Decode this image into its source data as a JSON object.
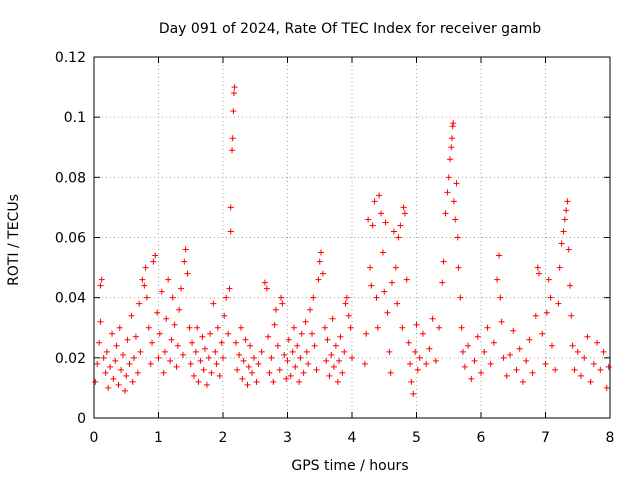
{
  "chart_data": {
    "type": "scatter",
    "title": "Day 091 of 2024, Rate Of TEC Index for receiver gamb",
    "xlabel": "GPS time / hours",
    "ylabel": "ROTI / TECUs",
    "xlim": [
      0,
      8
    ],
    "ylim": [
      0,
      0.12
    ],
    "xticks": [
      0,
      1,
      2,
      3,
      4,
      5,
      6,
      7,
      8
    ],
    "xtick_labels": [
      "0",
      "1",
      "2",
      "3",
      "4",
      "5",
      "6",
      "7",
      "8"
    ],
    "yticks": [
      0,
      0.02,
      0.04,
      0.06,
      0.08,
      0.1,
      0.12
    ],
    "ytick_labels": [
      "0",
      "0.02",
      "0.04",
      "0.06",
      "0.08",
      "0.1",
      "0.12"
    ],
    "grid": true,
    "marker": "plus",
    "color": "#ff0000",
    "series": [
      {
        "name": "ROTI",
        "points": [
          [
            0.02,
            0.012
          ],
          [
            0.05,
            0.018
          ],
          [
            0.08,
            0.025
          ],
          [
            0.1,
            0.032
          ],
          [
            0.1,
            0.044
          ],
          [
            0.12,
            0.046
          ],
          [
            0.15,
            0.02
          ],
          [
            0.18,
            0.015
          ],
          [
            0.2,
            0.022
          ],
          [
            0.22,
            0.01
          ],
          [
            0.25,
            0.017
          ],
          [
            0.28,
            0.028
          ],
          [
            0.3,
            0.013
          ],
          [
            0.33,
            0.019
          ],
          [
            0.35,
            0.024
          ],
          [
            0.38,
            0.011
          ],
          [
            0.4,
            0.03
          ],
          [
            0.42,
            0.016
          ],
          [
            0.45,
            0.021
          ],
          [
            0.48,
            0.009
          ],
          [
            0.5,
            0.014
          ],
          [
            0.52,
            0.026
          ],
          [
            0.55,
            0.018
          ],
          [
            0.58,
            0.034
          ],
          [
            0.6,
            0.012
          ],
          [
            0.62,
            0.02
          ],
          [
            0.65,
            0.027
          ],
          [
            0.68,
            0.015
          ],
          [
            0.7,
            0.038
          ],
          [
            0.72,
            0.022
          ],
          [
            0.75,
            0.046
          ],
          [
            0.78,
            0.044
          ],
          [
            0.8,
            0.05
          ],
          [
            0.82,
            0.04
          ],
          [
            0.85,
            0.03
          ],
          [
            0.88,
            0.018
          ],
          [
            0.9,
            0.025
          ],
          [
            0.92,
            0.052
          ],
          [
            0.95,
            0.054
          ],
          [
            0.98,
            0.035
          ],
          [
            1.0,
            0.02
          ],
          [
            1.02,
            0.028
          ],
          [
            1.05,
            0.042
          ],
          [
            1.08,
            0.015
          ],
          [
            1.1,
            0.022
          ],
          [
            1.12,
            0.033
          ],
          [
            1.15,
            0.046
          ],
          [
            1.18,
            0.019
          ],
          [
            1.2,
            0.026
          ],
          [
            1.22,
            0.04
          ],
          [
            1.25,
            0.031
          ],
          [
            1.28,
            0.017
          ],
          [
            1.3,
            0.024
          ],
          [
            1.32,
            0.036
          ],
          [
            1.35,
            0.043
          ],
          [
            1.38,
            0.021
          ],
          [
            1.4,
            0.052
          ],
          [
            1.42,
            0.056
          ],
          [
            1.45,
            0.048
          ],
          [
            1.48,
            0.03
          ],
          [
            1.5,
            0.018
          ],
          [
            1.52,
            0.025
          ],
          [
            1.55,
            0.014
          ],
          [
            1.58,
            0.022
          ],
          [
            1.6,
            0.03
          ],
          [
            1.62,
            0.012
          ],
          [
            1.65,
            0.019
          ],
          [
            1.68,
            0.027
          ],
          [
            1.7,
            0.016
          ],
          [
            1.72,
            0.023
          ],
          [
            1.75,
            0.011
          ],
          [
            1.78,
            0.02
          ],
          [
            1.8,
            0.028
          ],
          [
            1.82,
            0.015
          ],
          [
            1.85,
            0.038
          ],
          [
            1.88,
            0.022
          ],
          [
            1.9,
            0.018
          ],
          [
            1.92,
            0.03
          ],
          [
            1.95,
            0.014
          ],
          [
            1.98,
            0.025
          ],
          [
            2.0,
            0.02
          ],
          [
            2.02,
            0.034
          ],
          [
            2.05,
            0.04
          ],
          [
            2.08,
            0.028
          ],
          [
            2.1,
            0.043
          ],
          [
            2.12,
            0.062
          ],
          [
            2.12,
            0.07
          ],
          [
            2.14,
            0.089
          ],
          [
            2.15,
            0.093
          ],
          [
            2.16,
            0.102
          ],
          [
            2.17,
            0.108
          ],
          [
            2.18,
            0.11
          ],
          [
            2.2,
            0.025
          ],
          [
            2.22,
            0.016
          ],
          [
            2.25,
            0.021
          ],
          [
            2.28,
            0.03
          ],
          [
            2.3,
            0.013
          ],
          [
            2.32,
            0.019
          ],
          [
            2.35,
            0.026
          ],
          [
            2.38,
            0.011
          ],
          [
            2.4,
            0.017
          ],
          [
            2.42,
            0.024
          ],
          [
            2.45,
            0.015
          ],
          [
            2.48,
            0.02
          ],
          [
            2.52,
            0.012
          ],
          [
            2.55,
            0.018
          ],
          [
            2.6,
            0.022
          ],
          [
            2.65,
            0.045
          ],
          [
            2.68,
            0.043
          ],
          [
            2.7,
            0.027
          ],
          [
            2.72,
            0.015
          ],
          [
            2.75,
            0.02
          ],
          [
            2.78,
            0.012
          ],
          [
            2.8,
            0.031
          ],
          [
            2.82,
            0.036
          ],
          [
            2.85,
            0.024
          ],
          [
            2.88,
            0.016
          ],
          [
            2.9,
            0.04
          ],
          [
            2.92,
            0.038
          ],
          [
            2.95,
            0.021
          ],
          [
            2.98,
            0.013
          ],
          [
            3.0,
            0.019
          ],
          [
            3.02,
            0.026
          ],
          [
            3.05,
            0.014
          ],
          [
            3.08,
            0.022
          ],
          [
            3.1,
            0.03
          ],
          [
            3.12,
            0.017
          ],
          [
            3.15,
            0.024
          ],
          [
            3.18,
            0.012
          ],
          [
            3.2,
            0.02
          ],
          [
            3.22,
            0.028
          ],
          [
            3.25,
            0.015
          ],
          [
            3.28,
            0.032
          ],
          [
            3.3,
            0.022
          ],
          [
            3.32,
            0.018
          ],
          [
            3.35,
            0.036
          ],
          [
            3.38,
            0.028
          ],
          [
            3.4,
            0.04
          ],
          [
            3.42,
            0.024
          ],
          [
            3.45,
            0.016
          ],
          [
            3.48,
            0.046
          ],
          [
            3.5,
            0.052
          ],
          [
            3.52,
            0.055
          ],
          [
            3.55,
            0.048
          ],
          [
            3.58,
            0.03
          ],
          [
            3.6,
            0.019
          ],
          [
            3.62,
            0.026
          ],
          [
            3.65,
            0.014
          ],
          [
            3.68,
            0.021
          ],
          [
            3.7,
            0.033
          ],
          [
            3.72,
            0.017
          ],
          [
            3.75,
            0.024
          ],
          [
            3.78,
            0.012
          ],
          [
            3.8,
            0.019
          ],
          [
            3.82,
            0.027
          ],
          [
            3.85,
            0.015
          ],
          [
            3.88,
            0.022
          ],
          [
            3.9,
            0.038
          ],
          [
            3.92,
            0.04
          ],
          [
            3.95,
            0.034
          ],
          [
            3.98,
            0.03
          ],
          [
            4.0,
            0.02
          ],
          [
            4.2,
            0.018
          ],
          [
            4.22,
            0.028
          ],
          [
            4.25,
            0.066
          ],
          [
            4.28,
            0.05
          ],
          [
            4.3,
            0.044
          ],
          [
            4.32,
            0.064
          ],
          [
            4.35,
            0.072
          ],
          [
            4.38,
            0.04
          ],
          [
            4.4,
            0.03
          ],
          [
            4.42,
            0.074
          ],
          [
            4.45,
            0.068
          ],
          [
            4.48,
            0.055
          ],
          [
            4.5,
            0.042
          ],
          [
            4.52,
            0.065
          ],
          [
            4.55,
            0.035
          ],
          [
            4.58,
            0.022
          ],
          [
            4.6,
            0.015
          ],
          [
            4.62,
            0.045
          ],
          [
            4.65,
            0.062
          ],
          [
            4.68,
            0.05
          ],
          [
            4.7,
            0.038
          ],
          [
            4.72,
            0.06
          ],
          [
            4.75,
            0.064
          ],
          [
            4.78,
            0.03
          ],
          [
            4.8,
            0.07
          ],
          [
            4.82,
            0.068
          ],
          [
            4.85,
            0.046
          ],
          [
            4.88,
            0.025
          ],
          [
            4.9,
            0.018
          ],
          [
            4.92,
            0.012
          ],
          [
            4.95,
            0.008
          ],
          [
            4.98,
            0.022
          ],
          [
            5.0,
            0.031
          ],
          [
            5.02,
            0.016
          ],
          [
            5.05,
            0.02
          ],
          [
            5.1,
            0.028
          ],
          [
            5.15,
            0.018
          ],
          [
            5.2,
            0.023
          ],
          [
            5.25,
            0.033
          ],
          [
            5.3,
            0.019
          ],
          [
            5.35,
            0.03
          ],
          [
            5.4,
            0.045
          ],
          [
            5.42,
            0.052
          ],
          [
            5.45,
            0.068
          ],
          [
            5.48,
            0.075
          ],
          [
            5.5,
            0.08
          ],
          [
            5.52,
            0.086
          ],
          [
            5.54,
            0.09
          ],
          [
            5.55,
            0.093
          ],
          [
            5.56,
            0.097
          ],
          [
            5.57,
            0.098
          ],
          [
            5.58,
            0.072
          ],
          [
            5.6,
            0.066
          ],
          [
            5.62,
            0.078
          ],
          [
            5.64,
            0.06
          ],
          [
            5.65,
            0.05
          ],
          [
            5.68,
            0.04
          ],
          [
            5.7,
            0.03
          ],
          [
            5.72,
            0.022
          ],
          [
            5.75,
            0.017
          ],
          [
            5.8,
            0.024
          ],
          [
            5.85,
            0.013
          ],
          [
            5.9,
            0.019
          ],
          [
            5.95,
            0.027
          ],
          [
            6.0,
            0.015
          ],
          [
            6.05,
            0.022
          ],
          [
            6.1,
            0.03
          ],
          [
            6.15,
            0.018
          ],
          [
            6.2,
            0.025
          ],
          [
            6.25,
            0.046
          ],
          [
            6.28,
            0.054
          ],
          [
            6.3,
            0.04
          ],
          [
            6.32,
            0.032
          ],
          [
            6.35,
            0.02
          ],
          [
            6.4,
            0.014
          ],
          [
            6.45,
            0.021
          ],
          [
            6.5,
            0.029
          ],
          [
            6.55,
            0.016
          ],
          [
            6.6,
            0.023
          ],
          [
            6.65,
            0.012
          ],
          [
            6.7,
            0.019
          ],
          [
            6.75,
            0.026
          ],
          [
            6.8,
            0.015
          ],
          [
            6.85,
            0.034
          ],
          [
            6.88,
            0.05
          ],
          [
            6.9,
            0.048
          ],
          [
            6.95,
            0.028
          ],
          [
            7.0,
            0.018
          ],
          [
            7.02,
            0.035
          ],
          [
            7.05,
            0.046
          ],
          [
            7.08,
            0.04
          ],
          [
            7.1,
            0.024
          ],
          [
            7.15,
            0.016
          ],
          [
            7.2,
            0.038
          ],
          [
            7.22,
            0.05
          ],
          [
            7.25,
            0.058
          ],
          [
            7.28,
            0.062
          ],
          [
            7.3,
            0.066
          ],
          [
            7.32,
            0.069
          ],
          [
            7.34,
            0.072
          ],
          [
            7.36,
            0.056
          ],
          [
            7.38,
            0.044
          ],
          [
            7.4,
            0.034
          ],
          [
            7.42,
            0.024
          ],
          [
            7.45,
            0.016
          ],
          [
            7.5,
            0.022
          ],
          [
            7.55,
            0.014
          ],
          [
            7.6,
            0.02
          ],
          [
            7.65,
            0.027
          ],
          [
            7.7,
            0.012
          ],
          [
            7.75,
            0.018
          ],
          [
            7.8,
            0.025
          ],
          [
            7.85,
            0.016
          ],
          [
            7.9,
            0.022
          ],
          [
            7.95,
            0.01
          ],
          [
            7.98,
            0.017
          ]
        ]
      }
    ]
  }
}
